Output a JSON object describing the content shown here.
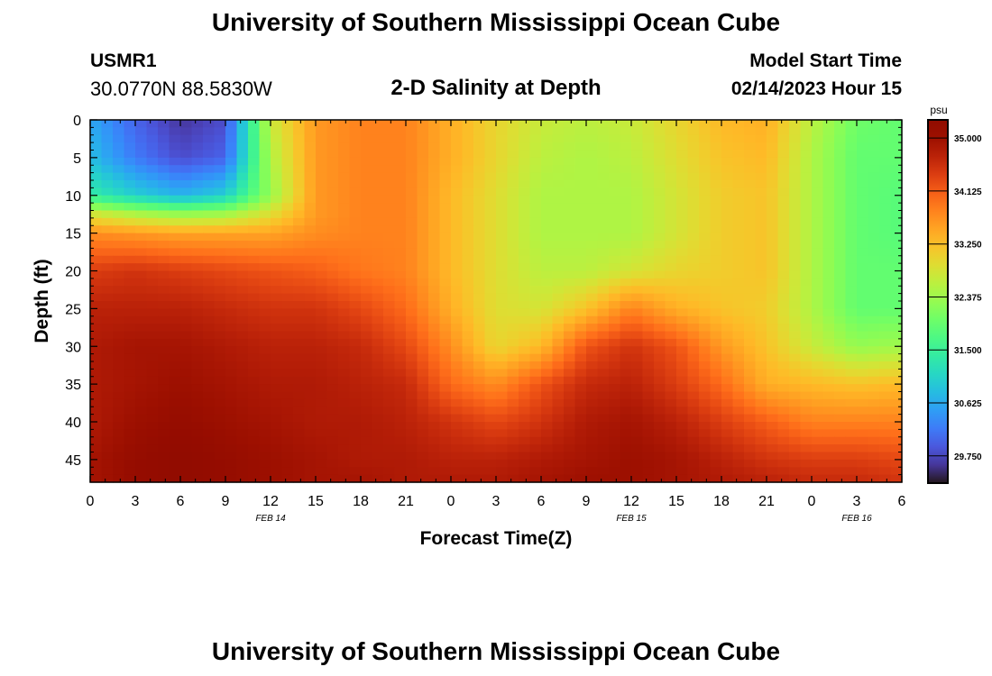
{
  "header": {
    "title": "University of Southern Mississippi Ocean Cube",
    "station_id": "USMR1",
    "station_coords": "30.0770N  88.5830W",
    "model_start_label": "Model Start Time",
    "model_start_time": "02/14/2023 Hour 15"
  },
  "footer": {
    "title": "University of Southern Mississippi Ocean Cube"
  },
  "chart_data": {
    "type": "heatmap",
    "title": "2-D Salinity at Depth",
    "xlabel": "Forecast Time(Z)",
    "ylabel": "Depth (ft)",
    "x_tick_labels": [
      "0",
      "3",
      "6",
      "9",
      "12",
      "15",
      "18",
      "21",
      "0",
      "3",
      "6",
      "9",
      "12",
      "15",
      "18",
      "21",
      "0",
      "3",
      "6"
    ],
    "x_range_hours": [
      0,
      54
    ],
    "date_labels": [
      {
        "label": "FEB 14",
        "at_hour": 12
      },
      {
        "label": "FEB 15",
        "at_hour": 36
      },
      {
        "label": "FEB 16",
        "at_hour": 51
      }
    ],
    "y_tick_labels": [
      "0",
      "5",
      "10",
      "15",
      "20",
      "25",
      "30",
      "35",
      "40",
      "45"
    ],
    "y_range_ft": [
      0,
      48
    ],
    "y_reversed": true,
    "colorbar": {
      "unit": "psu",
      "min": 29.3,
      "max": 35.3,
      "tick_labels": [
        "35.000",
        "34.125",
        "33.250",
        "32.375",
        "31.500",
        "30.625",
        "29.750"
      ],
      "colormap": "turbo"
    },
    "salinity_grid": {
      "hours": [
        0,
        3,
        6,
        9,
        12,
        15,
        18,
        21,
        24,
        27,
        30,
        33,
        36,
        39,
        42,
        45,
        48,
        51,
        54
      ],
      "depths_ft": [
        0,
        5,
        10,
        12.5,
        15,
        20,
        25,
        30,
        35,
        40,
        45,
        48
      ],
      "values": [
        [
          30.6,
          30.0,
          29.6,
          29.8,
          32.7,
          33.6,
          33.8,
          33.8,
          33.4,
          33.0,
          32.7,
          32.6,
          32.7,
          33.0,
          33.3,
          33.4,
          32.6,
          32.0,
          31.9
        ],
        [
          30.8,
          30.2,
          29.8,
          30.0,
          32.5,
          33.6,
          33.8,
          33.8,
          33.4,
          33.0,
          32.6,
          32.5,
          32.6,
          32.9,
          33.2,
          33.3,
          32.5,
          31.9,
          31.9
        ],
        [
          31.4,
          31.0,
          30.7,
          31.0,
          32.3,
          33.6,
          33.8,
          33.8,
          33.3,
          32.9,
          32.5,
          32.5,
          32.5,
          32.8,
          33.1,
          33.2,
          32.5,
          31.9,
          31.8
        ],
        [
          32.8,
          32.5,
          32.3,
          32.4,
          32.9,
          33.6,
          33.8,
          33.8,
          33.3,
          32.9,
          32.5,
          32.5,
          32.5,
          32.8,
          33.1,
          33.2,
          32.5,
          31.9,
          31.8
        ],
        [
          33.7,
          33.6,
          33.5,
          33.5,
          33.5,
          33.7,
          33.8,
          33.8,
          33.3,
          32.9,
          32.5,
          32.5,
          32.5,
          32.8,
          33.1,
          33.2,
          32.5,
          31.9,
          31.8
        ],
        [
          34.4,
          34.5,
          34.4,
          34.3,
          34.2,
          34.1,
          33.9,
          33.8,
          33.3,
          32.9,
          32.6,
          32.6,
          32.8,
          33.0,
          33.1,
          33.2,
          32.5,
          31.9,
          31.9
        ],
        [
          34.7,
          34.7,
          34.7,
          34.6,
          34.5,
          34.5,
          34.3,
          34.0,
          33.4,
          32.9,
          32.8,
          33.2,
          33.8,
          33.4,
          33.2,
          33.1,
          32.5,
          31.9,
          31.9
        ],
        [
          34.8,
          34.9,
          34.9,
          34.8,
          34.7,
          34.7,
          34.6,
          34.3,
          33.7,
          33.0,
          33.3,
          34.2,
          34.5,
          34.2,
          33.6,
          33.2,
          32.7,
          32.3,
          32.4
        ],
        [
          34.8,
          34.9,
          35.0,
          34.9,
          34.8,
          34.8,
          34.7,
          34.6,
          34.0,
          33.7,
          34.2,
          34.6,
          34.7,
          34.4,
          34.0,
          33.4,
          33.3,
          33.2,
          33.3
        ],
        [
          34.8,
          35.0,
          35.1,
          35.0,
          34.9,
          34.8,
          34.8,
          34.7,
          34.5,
          34.3,
          34.5,
          34.8,
          34.9,
          34.7,
          34.4,
          34.1,
          33.8,
          33.8,
          33.8
        ],
        [
          34.9,
          35.1,
          35.2,
          35.1,
          35.0,
          34.9,
          34.8,
          34.8,
          34.7,
          34.7,
          34.8,
          34.9,
          35.0,
          34.9,
          34.7,
          34.5,
          34.4,
          34.4,
          34.3
        ],
        [
          34.9,
          35.1,
          35.2,
          35.1,
          35.0,
          34.9,
          34.9,
          34.8,
          34.8,
          34.8,
          34.9,
          35.0,
          35.0,
          34.9,
          34.8,
          34.7,
          34.6,
          34.6,
          34.5
        ]
      ]
    }
  }
}
